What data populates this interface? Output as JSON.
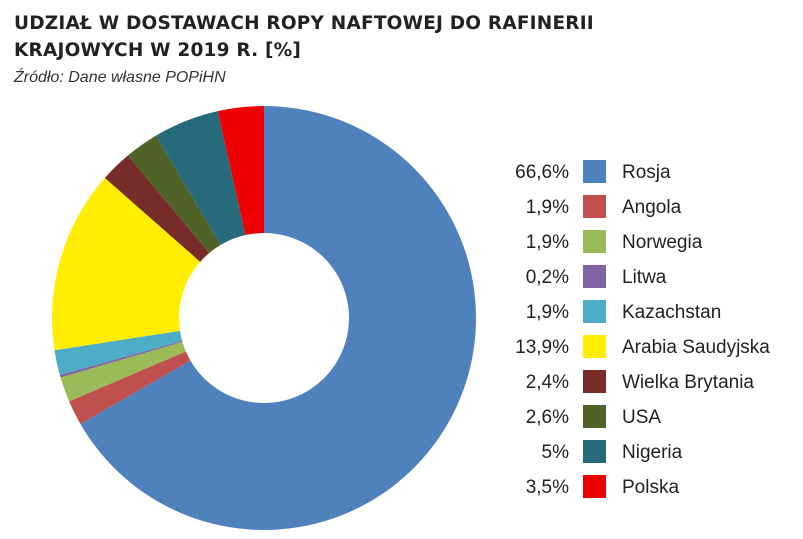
{
  "header": {
    "title_line1": "UDZIAŁ W DOSTAWACH ROPY NAFTOWEJ DO RAFINERII",
    "title_line2": "KRAJOWYCH W 2019 R. [%]",
    "source": "Źródło: Dane własne POPiHN"
  },
  "chart_data": {
    "type": "pie",
    "donut": true,
    "title": "UDZIAŁ W DOSTAWACH ROPY NAFTOWEJ DO RAFINERII KRAJOWYCH W 2019 R. [%]",
    "legend_position": "right",
    "slices": [
      {
        "name": "Rosja",
        "value": 66.6,
        "label": "66,6%",
        "color": "#4f81bd"
      },
      {
        "name": "Angola",
        "value": 1.9,
        "label": "1,9%",
        "color": "#c0504d"
      },
      {
        "name": "Norwegia",
        "value": 1.9,
        "label": "1,9%",
        "color": "#9bbb59"
      },
      {
        "name": "Litwa",
        "value": 0.2,
        "label": "0,2%",
        "color": "#8064a2"
      },
      {
        "name": "Kazachstan",
        "value": 1.9,
        "label": "1,9%",
        "color": "#4bacc6"
      },
      {
        "name": "Arabia Saudyjska",
        "value": 13.9,
        "label": "13,9%",
        "color": "#ffee00"
      },
      {
        "name": "Wielka Brytania",
        "value": 2.4,
        "label": "2,4%",
        "color": "#772c2a"
      },
      {
        "name": "USA",
        "value": 2.6,
        "label": "2,6%",
        "color": "#4f6228"
      },
      {
        "name": "Nigeria",
        "value": 5.0,
        "label": "5%",
        "color": "#276a7c"
      },
      {
        "name": "Polska",
        "value": 3.5,
        "label": "3,5%",
        "color": "#ee0000"
      }
    ]
  }
}
